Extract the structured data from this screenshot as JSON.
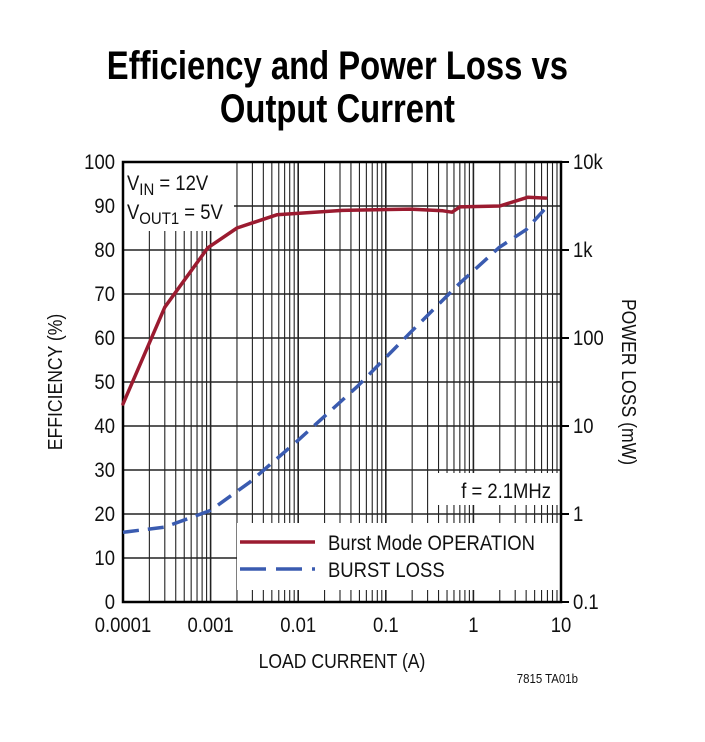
{
  "chart_data": {
    "type": "line",
    "title": [
      "Efficiency and Power Loss vs",
      "Output Current"
    ],
    "xlabel": "LOAD CURRENT (A)",
    "ylabel_left": "EFFICIENCY (%)",
    "ylabel_right": "POWER LOSS (mW)",
    "x_scale": "log",
    "xlim": [
      0.0001,
      10
    ],
    "ylim_left": [
      0,
      100
    ],
    "ylim_right": [
      0.1,
      10000
    ],
    "y_right_scale": "log",
    "grid": true,
    "x_ticks": [
      "0.0001",
      "0.001",
      "0.01",
      "0.1",
      "1",
      "10"
    ],
    "y_left_ticks": [
      "0",
      "10",
      "20",
      "30",
      "40",
      "50",
      "60",
      "70",
      "80",
      "90",
      "100"
    ],
    "y_right_ticks": [
      "0.1",
      "1",
      "10",
      "100",
      "1k",
      "10k"
    ],
    "annotations": {
      "vin": {
        "main": "V",
        "sub": "IN",
        "rest": " = 12V"
      },
      "vout": {
        "main": "V",
        "sub": "OUT1",
        "rest": " = 5V"
      },
      "freq": "f = 2.1MHz"
    },
    "legend_position": "bottom-right",
    "series": [
      {
        "name": "Burst Mode OPERATION",
        "axis": "left",
        "color": "#9b1b30",
        "style": "solid",
        "x": [
          0.0001,
          0.0003,
          0.00093,
          0.002,
          0.0057,
          0.032,
          0.19,
          0.45,
          0.57,
          0.7,
          2,
          4.2,
          6.7
        ],
        "y": [
          45,
          67,
          80.5,
          85,
          88,
          89,
          89.3,
          88.9,
          88.6,
          89.8,
          90,
          92,
          91.8
        ]
      },
      {
        "name": "BURST LOSS",
        "axis": "right",
        "color": "#3a5bb0",
        "style": "dashed",
        "x": [
          0.0001,
          0.0003,
          0.001,
          0.0028,
          0.01,
          0.047,
          0.19,
          0.7,
          1.97,
          4,
          6.7
        ],
        "y": [
          0.62,
          0.71,
          1.1,
          2.3,
          6.9,
          28,
          115,
          420,
          1070,
          1700,
          3000
        ]
      }
    ],
    "figure_id": "7815 TA01b"
  }
}
